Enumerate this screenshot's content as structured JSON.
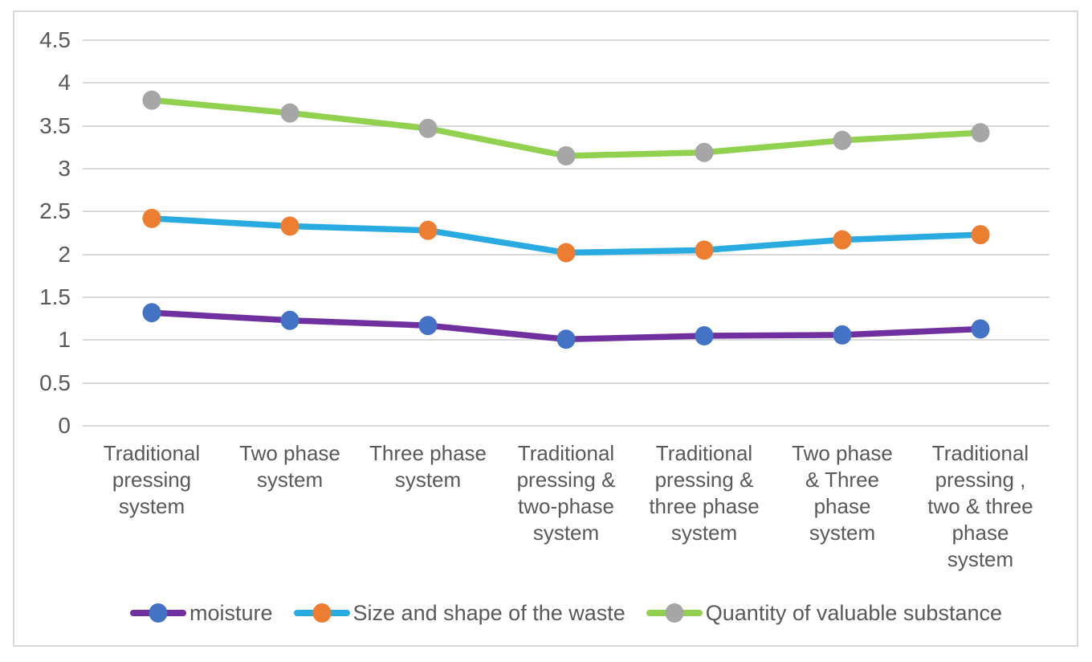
{
  "chart_data": {
    "type": "line",
    "title": "",
    "xlabel": "",
    "ylabel": "",
    "categories": [
      "Traditional\npressing\nsystem",
      "Two phase\nsystem",
      "Three phase\nsystem",
      "Traditional\npressing &\ntwo-phase\nsystem",
      "Traditional\npressing &\nthree phase\nsystem",
      "Two phase\n& Three\nphase\nsystem",
      "Traditional\npressing ,\ntwo & three\nphase\nsystem"
    ],
    "series": [
      {
        "name": "moisture",
        "line_color": "#7030A0",
        "marker_color": "#4472C4",
        "values": [
          1.32,
          1.23,
          1.17,
          1.01,
          1.05,
          1.06,
          1.13
        ]
      },
      {
        "name": "Size and shape of the waste",
        "line_color": "#29ABE2",
        "marker_color": "#ED7D31",
        "values": [
          2.42,
          2.33,
          2.28,
          2.02,
          2.05,
          2.17,
          2.23
        ]
      },
      {
        "name": "Quantity of valuable substance",
        "line_color": "#92D050",
        "marker_color": "#A6A6A6",
        "values": [
          3.8,
          3.65,
          3.47,
          3.15,
          3.19,
          3.33,
          3.42
        ]
      }
    ],
    "y_ticks": [
      "4.5",
      "4",
      "3.5",
      "3",
      "2.5",
      "2",
      "1.5",
      "1",
      "0.5",
      "0"
    ],
    "ylim": [
      0,
      4.5
    ],
    "grid": true,
    "legend_position": "bottom"
  },
  "colors": {
    "grid": "#D9D9D9",
    "frame_border": "#D9D9D9",
    "text": "#595959",
    "background": "#FFFFFF"
  }
}
